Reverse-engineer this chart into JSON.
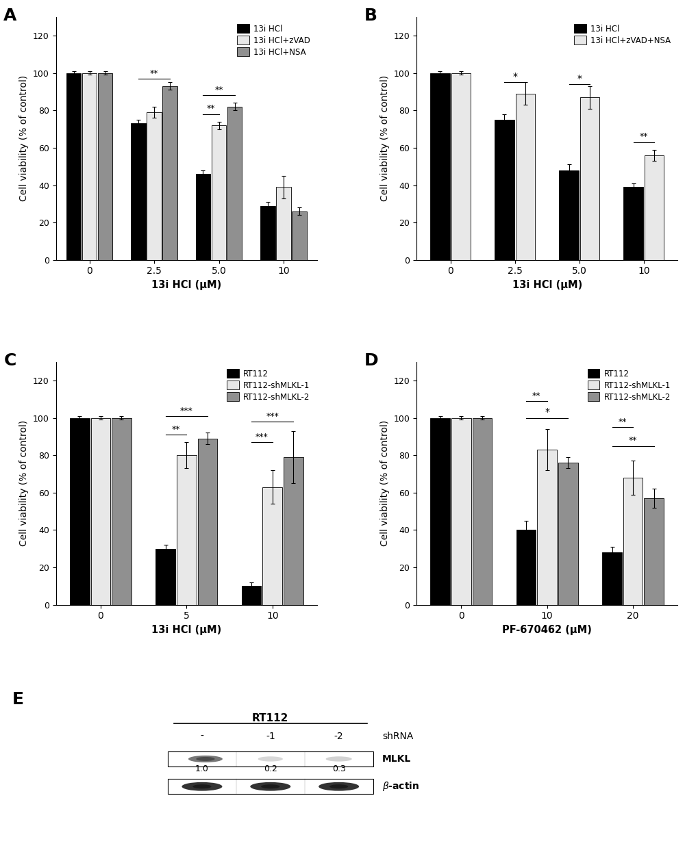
{
  "panel_A": {
    "title": "A",
    "xlabel": "13i HCl (μM)",
    "ylabel": "Cell viability (% of control)",
    "xtick_labels": [
      "0",
      "2.5",
      "5.0",
      "10"
    ],
    "legend_labels": [
      "13i HCl",
      "13i HCl+zVAD",
      "13i HCl+NSA"
    ],
    "bar_colors": [
      "#000000",
      "#e8e8e8",
      "#909090"
    ],
    "values": [
      [
        100,
        100,
        100
      ],
      [
        73,
        79,
        93
      ],
      [
        46,
        72,
        82
      ],
      [
        29,
        39,
        26
      ]
    ],
    "errors": [
      [
        1,
        1,
        1
      ],
      [
        2,
        3,
        2
      ],
      [
        2,
        2,
        2
      ],
      [
        2,
        6,
        2
      ]
    ],
    "ylim": [
      0,
      130
    ],
    "yticks": [
      0,
      20,
      40,
      60,
      80,
      100,
      120
    ]
  },
  "panel_B": {
    "title": "B",
    "xlabel": "13i HCl (μM)",
    "ylabel": "Cell viability (% of control)",
    "xtick_labels": [
      "0",
      "2.5",
      "5.0",
      "10"
    ],
    "legend_labels": [
      "13i HCl",
      "13i HCl+zVAD+NSA"
    ],
    "bar_colors": [
      "#000000",
      "#e8e8e8"
    ],
    "values": [
      [
        100,
        100
      ],
      [
        75,
        89
      ],
      [
        48,
        87
      ],
      [
        39,
        56
      ]
    ],
    "errors": [
      [
        1,
        1
      ],
      [
        3,
        6
      ],
      [
        3,
        6
      ],
      [
        2,
        3
      ]
    ],
    "ylim": [
      0,
      130
    ],
    "yticks": [
      0,
      20,
      40,
      60,
      80,
      100,
      120
    ]
  },
  "panel_C": {
    "title": "C",
    "xlabel": "13i HCl (μM)",
    "ylabel": "Cell viability (% of control)",
    "xtick_labels": [
      "0",
      "5",
      "10"
    ],
    "legend_labels": [
      "RT112",
      "RT112-shMLKL-1",
      "RT112-shMLKL-2"
    ],
    "bar_colors": [
      "#000000",
      "#e8e8e8",
      "#909090"
    ],
    "values": [
      [
        100,
        100,
        100
      ],
      [
        30,
        80,
        89
      ],
      [
        10,
        63,
        79
      ]
    ],
    "errors": [
      [
        1,
        1,
        1
      ],
      [
        2,
        7,
        3
      ],
      [
        2,
        9,
        14
      ]
    ],
    "ylim": [
      0,
      130
    ],
    "yticks": [
      0,
      20,
      40,
      60,
      80,
      100,
      120
    ]
  },
  "panel_D": {
    "title": "D",
    "xlabel": "PF-670462 (μM)",
    "ylabel": "Cell viability (% of control)",
    "xtick_labels": [
      "0",
      "10",
      "20"
    ],
    "legend_labels": [
      "RT112",
      "RT112-shMLKL-1",
      "RT112-shMLKL-2"
    ],
    "bar_colors": [
      "#000000",
      "#e8e8e8",
      "#909090"
    ],
    "values": [
      [
        100,
        100,
        100
      ],
      [
        40,
        83,
        76
      ],
      [
        28,
        68,
        57
      ]
    ],
    "errors": [
      [
        1,
        1,
        1
      ],
      [
        5,
        11,
        3
      ],
      [
        3,
        9,
        5
      ]
    ],
    "ylim": [
      0,
      130
    ],
    "yticks": [
      0,
      20,
      40,
      60,
      80,
      100,
      120
    ]
  },
  "panel_E": {
    "title": "E",
    "shRNA_labels": [
      "-",
      "-1",
      "-2"
    ],
    "cell_line": "RT112",
    "protein_labels": [
      "MLKL",
      "β-actin"
    ],
    "quantification": [
      "1.0",
      "0.2",
      "0.3"
    ]
  },
  "background_color": "#ffffff"
}
